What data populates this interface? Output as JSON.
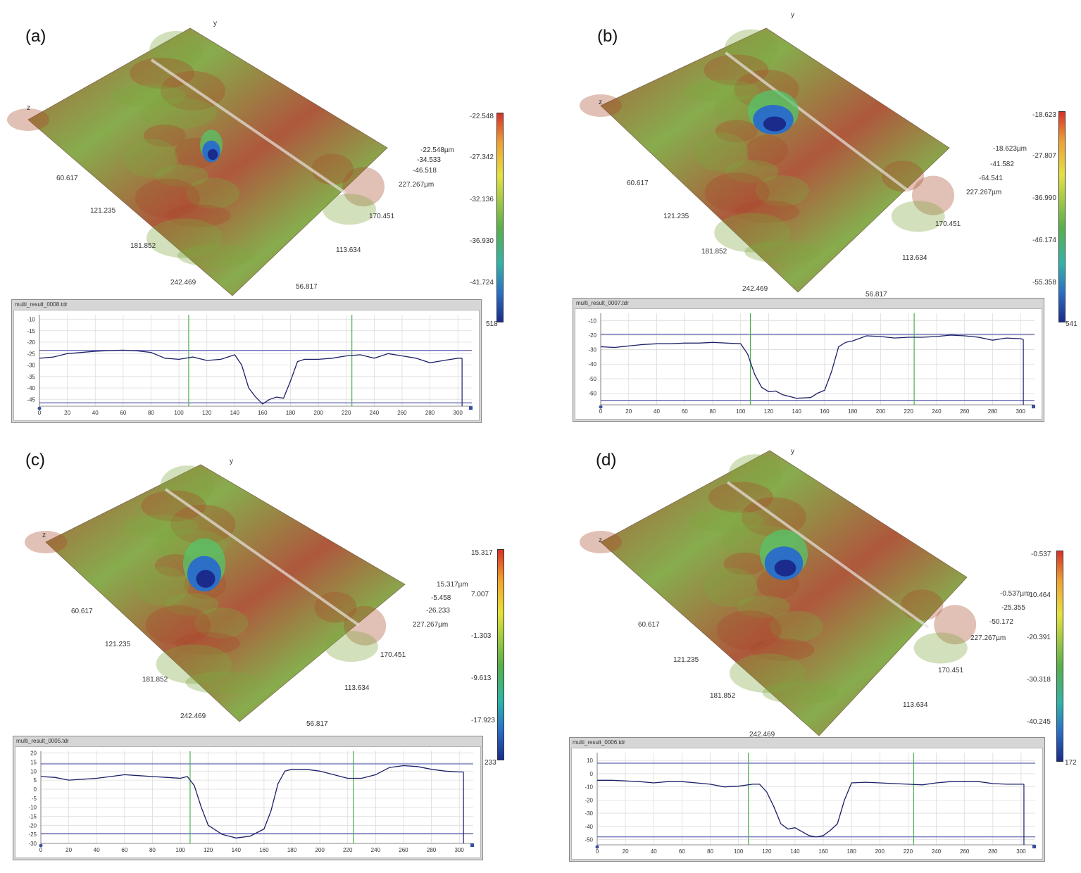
{
  "panels": [
    {
      "label": "(a)",
      "surface_axes": {
        "z": "z",
        "y": "y",
        "x_ticks": [
          "60.617",
          "121.235",
          "181.852",
          "242.469"
        ],
        "y_ticks": [
          "170.451",
          "113.634",
          "56.817"
        ]
      },
      "readout": [
        "-22.548µm",
        "-34.533",
        "-46.518",
        "227.267µm"
      ],
      "colorbar_ticks": [
        "-22.548",
        "-27.342",
        "-32.136",
        "-36.930",
        "-41.724",
        "518"
      ],
      "window_title": "multi_result_0008.tdr",
      "chart_data": {
        "type": "line",
        "x_ticks": [
          0,
          20,
          40,
          60,
          80,
          100,
          120,
          140,
          160,
          180,
          200,
          220,
          240,
          260,
          280,
          300
        ],
        "y_ticks": [
          -10,
          -15,
          -20,
          -25,
          -30,
          -35,
          -40,
          -45
        ],
        "xlim": [
          0,
          310
        ],
        "ylim": [
          -48,
          -8
        ],
        "ref_lines_y": [
          -23.6,
          -46.5
        ],
        "markers_x": [
          107,
          224
        ],
        "x": [
          0,
          10,
          20,
          30,
          40,
          50,
          60,
          70,
          80,
          90,
          100,
          110,
          120,
          130,
          140,
          145,
          150,
          155,
          160,
          165,
          170,
          175,
          180,
          185,
          190,
          200,
          210,
          220,
          230,
          240,
          250,
          260,
          270,
          280,
          290,
          300,
          303
        ],
        "y": [
          -27,
          -26.5,
          -25,
          -24.5,
          -24,
          -23.7,
          -23.5,
          -23.8,
          -24.5,
          -27,
          -27.5,
          -26.5,
          -28,
          -27.5,
          -25.5,
          -30,
          -40,
          -44,
          -47,
          -45,
          -44,
          -44.5,
          -37,
          -28.5,
          -27.5,
          -27.5,
          -27,
          -26,
          -25.5,
          -27,
          -25,
          -26,
          -27,
          -29,
          -28,
          -27,
          -27
        ]
      }
    },
    {
      "label": "(b)",
      "surface_axes": {
        "z": "z",
        "y": "y",
        "x_ticks": [
          "60.617",
          "121.235",
          "181.852",
          "242.469"
        ],
        "y_ticks": [
          "170.451",
          "113.634",
          "56.817"
        ]
      },
      "readout": [
        "-18.623µm",
        "-41.582",
        "-64.541",
        "227.267µm"
      ],
      "colorbar_ticks": [
        "-18.623",
        "-27.807",
        "-36.990",
        "-46.174",
        "-55.358",
        "541"
      ],
      "window_title": "multi_result_0007.tdr",
      "chart_data": {
        "type": "line",
        "x_ticks": [
          0,
          20,
          40,
          60,
          80,
          100,
          120,
          140,
          160,
          180,
          200,
          220,
          240,
          260,
          280,
          300
        ],
        "y_ticks": [
          -10,
          -20,
          -30,
          -40,
          -50,
          -60
        ],
        "xlim": [
          0,
          310
        ],
        "ylim": [
          -68,
          -5
        ],
        "ref_lines_y": [
          -19.5,
          -65
        ],
        "markers_x": [
          107,
          224
        ],
        "x": [
          0,
          10,
          20,
          30,
          40,
          50,
          60,
          70,
          80,
          90,
          100,
          105,
          110,
          115,
          120,
          125,
          130,
          140,
          150,
          155,
          160,
          165,
          170,
          175,
          180,
          190,
          200,
          210,
          220,
          230,
          240,
          250,
          260,
          270,
          280,
          290,
          300,
          302
        ],
        "y": [
          -28,
          -28.5,
          -27.5,
          -26.5,
          -26,
          -26,
          -25.5,
          -25.5,
          -25,
          -25.5,
          -26,
          -33,
          -47,
          -56,
          -59,
          -58.5,
          -61,
          -63.5,
          -63,
          -60,
          -58,
          -45,
          -28,
          -25,
          -24,
          -20.5,
          -21,
          -22,
          -21.5,
          -21.5,
          -21,
          -20,
          -20.5,
          -21.5,
          -23.5,
          -22,
          -22.5,
          -23
        ]
      }
    },
    {
      "label": "(c)",
      "surface_axes": {
        "z": "z",
        "y": "y",
        "x_ticks": [
          "60.617",
          "121.235",
          "181.852",
          "242.469"
        ],
        "y_ticks": [
          "170.451",
          "113.634",
          "56.817"
        ]
      },
      "readout": [
        "15.317µm",
        "-5.458",
        "-26.233",
        "227.267µm"
      ],
      "colorbar_ticks": [
        "15.317",
        "7.007",
        "-1.303",
        "-9.613",
        "-17.923",
        "233"
      ],
      "window_title": "multi_result_0005.tdr",
      "chart_data": {
        "type": "line",
        "x_ticks": [
          0,
          20,
          40,
          60,
          80,
          100,
          120,
          140,
          160,
          180,
          200,
          220,
          240,
          260,
          280,
          300
        ],
        "y_ticks": [
          20,
          15,
          10,
          5,
          0,
          -5,
          -10,
          -15,
          -20,
          -25,
          -30
        ],
        "xlim": [
          0,
          310
        ],
        "ylim": [
          -30,
          21
        ],
        "ref_lines_y": [
          14,
          -24.5
        ],
        "markers_x": [
          107,
          224
        ],
        "x": [
          0,
          10,
          20,
          30,
          40,
          50,
          60,
          70,
          80,
          90,
          100,
          105,
          110,
          115,
          120,
          130,
          140,
          150,
          160,
          165,
          170,
          175,
          180,
          190,
          200,
          210,
          220,
          230,
          240,
          250,
          260,
          270,
          280,
          290,
          300,
          303
        ],
        "y": [
          7,
          6.5,
          5,
          5.5,
          6,
          7,
          8,
          7.5,
          7,
          6.5,
          6,
          7,
          2,
          -10,
          -20,
          -25,
          -27,
          -26,
          -22,
          -12,
          3,
          10,
          11,
          11,
          10,
          8,
          6,
          6,
          8,
          12,
          13,
          12.5,
          11,
          10,
          9.5,
          9.5
        ]
      }
    },
    {
      "label": "(d)",
      "surface_axes": {
        "z": "z",
        "y": "y",
        "x_ticks": [
          "60.617",
          "121.235",
          "181.852",
          "242.469"
        ],
        "y_ticks": [
          "170.451",
          "113.634"
        ]
      },
      "readout": [
        "-0.537µm",
        "-25.355",
        "-50.172",
        "227.267µm"
      ],
      "colorbar_ticks": [
        "-0.537",
        "-10.464",
        "-20.391",
        "-30.318",
        "-40.245",
        "172"
      ],
      "window_title": "multi_result_0006.tdr",
      "chart_data": {
        "type": "line",
        "x_ticks": [
          0,
          20,
          40,
          60,
          80,
          100,
          120,
          140,
          160,
          180,
          200,
          220,
          240,
          260,
          280,
          300
        ],
        "y_ticks": [
          10,
          0,
          -10,
          -20,
          -30,
          -40,
          -50
        ],
        "xlim": [
          0,
          310
        ],
        "ylim": [
          -54,
          16
        ],
        "ref_lines_y": [
          8,
          -48
        ],
        "markers_x": [
          107,
          224
        ],
        "x": [
          0,
          10,
          20,
          30,
          40,
          50,
          60,
          70,
          80,
          90,
          100,
          110,
          115,
          120,
          125,
          130,
          135,
          140,
          145,
          150,
          155,
          160,
          165,
          170,
          175,
          180,
          190,
          200,
          210,
          220,
          230,
          240,
          250,
          260,
          270,
          280,
          290,
          300,
          302
        ],
        "y": [
          -5,
          -5,
          -5.5,
          -6,
          -7,
          -6,
          -6,
          -7,
          -8,
          -10,
          -9.5,
          -8,
          -8,
          -14,
          -25,
          -38,
          -42,
          -41,
          -44,
          -47,
          -48,
          -47,
          -43,
          -38,
          -20,
          -7,
          -6.5,
          -7,
          -7.5,
          -8,
          -8.5,
          -7,
          -6,
          -6,
          -6,
          -7.5,
          -8,
          -8,
          -8
        ]
      }
    }
  ],
  "colors": {
    "surface_red": "#a84a2c",
    "surface_green": "#7da63e",
    "pit_blue": "#2b6fc7",
    "profile_line": "#1a1f66",
    "ref_line": "#3a3fa0",
    "marker_line": "#4caf50",
    "grid": "#dcdcdc",
    "window_frame": "#d6d6d6"
  }
}
